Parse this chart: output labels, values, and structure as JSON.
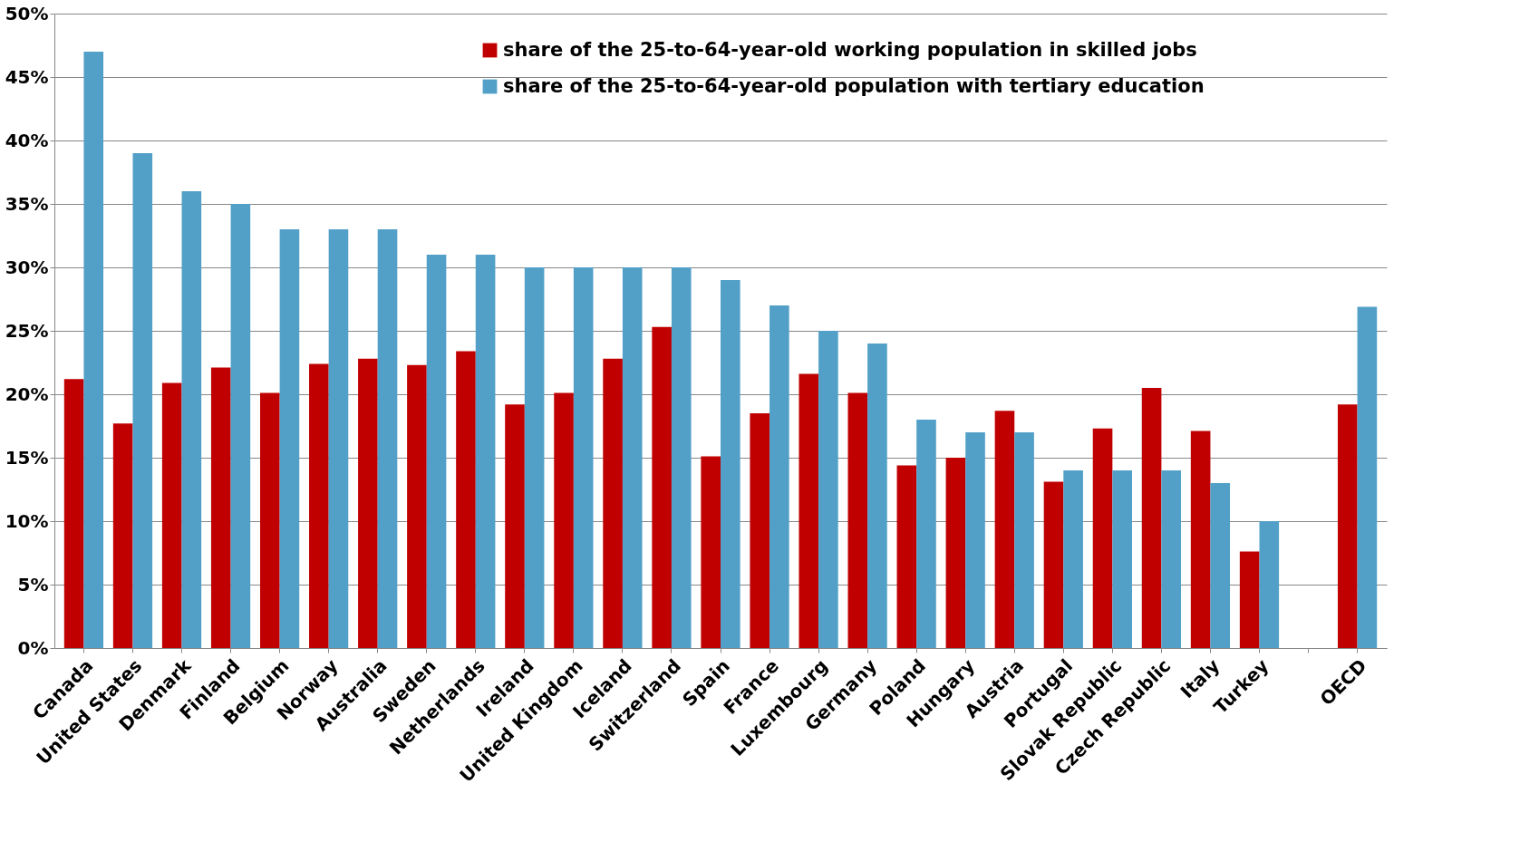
{
  "chart_data": {
    "type": "bar",
    "categories": [
      "Canada",
      "United States",
      "Denmark",
      "Finland",
      "Belgium",
      "Norway",
      "Australia",
      "Sweden",
      "Netherlands",
      "Ireland",
      "United Kingdom",
      "Iceland",
      "Switzerland",
      "Spain",
      "France",
      "Luxembourg",
      "Germany",
      "Poland",
      "Hungary",
      "Austria",
      "Portugal",
      "Slovak Republic",
      "Czech Republic",
      "Italy",
      "Turkey",
      null,
      "OECD"
    ],
    "series": [
      {
        "name": "share of the 25-to-64-year-old working population in skilled jobs",
        "color": "#c00000",
        "values": [
          21.2,
          17.7,
          20.9,
          22.1,
          20.1,
          22.4,
          22.8,
          22.3,
          23.4,
          19.2,
          20.1,
          22.8,
          25.3,
          15.1,
          18.5,
          21.6,
          20.1,
          14.4,
          15.0,
          18.7,
          13.1,
          17.3,
          20.5,
          17.1,
          7.6,
          null,
          19.2
        ]
      },
      {
        "name": "share of the 25-to-64-year-old population with tertiary education",
        "color": "#52a0c8",
        "values": [
          47,
          39,
          36,
          35,
          33,
          33,
          33,
          31,
          31,
          30,
          30,
          30,
          30,
          29,
          27,
          25,
          24,
          18,
          17,
          17,
          14,
          14,
          14,
          13,
          10,
          null,
          26.9
        ]
      }
    ],
    "ylim": [
      0,
      50
    ],
    "yticks": [
      {
        "value": 0,
        "label": "0%"
      },
      {
        "value": 5,
        "label": "5%"
      },
      {
        "value": 10,
        "label": "10%"
      },
      {
        "value": 15,
        "label": "15%"
      },
      {
        "value": 20,
        "label": "20%"
      },
      {
        "value": 25,
        "label": "25%"
      },
      {
        "value": 30,
        "label": "30%"
      },
      {
        "value": 35,
        "label": "35%"
      },
      {
        "value": 40,
        "label": "40%"
      },
      {
        "value": 45,
        "label": "45%"
      },
      {
        "value": 50,
        "label": "50%"
      }
    ],
    "grid": "y",
    "legend": "top right"
  }
}
